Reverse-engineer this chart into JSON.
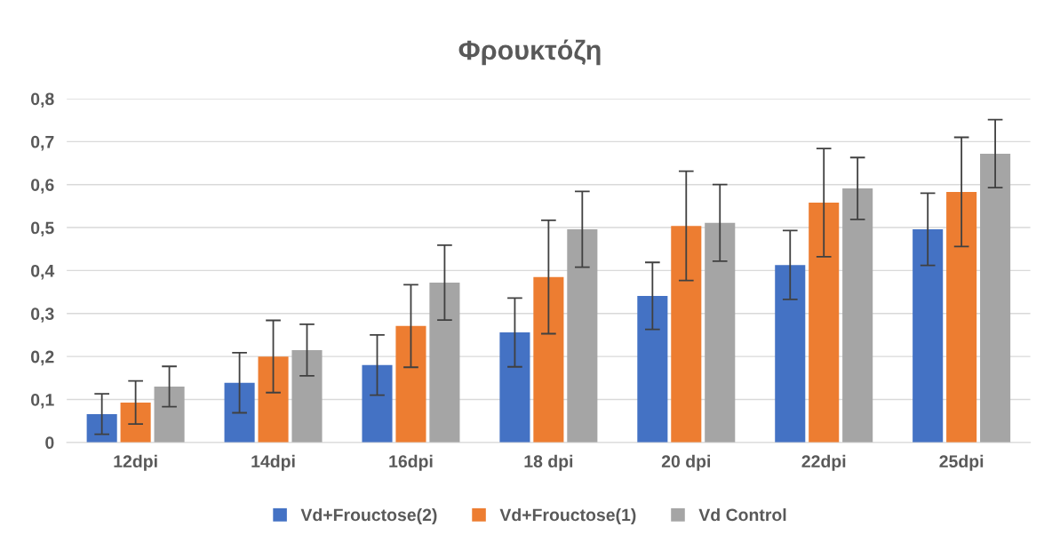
{
  "chart_data": {
    "type": "bar",
    "title": "Φρουκτόζη",
    "categories": [
      "12dpi",
      "14dpi",
      "16dpi",
      "18 dpi",
      "20 dpi",
      "22dpi",
      "25dpi"
    ],
    "series": [
      {
        "name": "Vd+Frouctose(2)",
        "color": "#4472c4",
        "values": [
          0.066,
          0.139,
          0.18,
          0.256,
          0.341,
          0.413,
          0.496
        ],
        "errors": [
          0.047,
          0.07,
          0.07,
          0.08,
          0.078,
          0.08,
          0.084
        ]
      },
      {
        "name": "Vd+Frouctose(1)",
        "color": "#ed7d31",
        "values": [
          0.093,
          0.2,
          0.271,
          0.385,
          0.504,
          0.558,
          0.583
        ],
        "errors": [
          0.05,
          0.084,
          0.096,
          0.132,
          0.127,
          0.126,
          0.127
        ]
      },
      {
        "name": "Vd Control",
        "color": "#a5a5a5",
        "values": [
          0.13,
          0.215,
          0.372,
          0.496,
          0.511,
          0.591,
          0.672
        ],
        "errors": [
          0.047,
          0.06,
          0.087,
          0.088,
          0.089,
          0.072,
          0.079
        ]
      }
    ],
    "ylim": [
      0,
      0.8
    ],
    "yticks": [
      0,
      {
        "value": 0.1,
        "label": "0,1"
      },
      {
        "value": 0.2,
        "label": "0,2"
      },
      {
        "value": 0.3,
        "label": "0,3"
      },
      {
        "value": 0.4,
        "label": "0,4"
      },
      {
        "value": 0.5,
        "label": "0,5"
      },
      {
        "value": 0.6,
        "label": "0,6"
      },
      {
        "value": 0.7,
        "label": "0,7"
      },
      {
        "value": 0.8,
        "label": "0,8"
      }
    ],
    "grid": "y",
    "legend": "bottom"
  }
}
